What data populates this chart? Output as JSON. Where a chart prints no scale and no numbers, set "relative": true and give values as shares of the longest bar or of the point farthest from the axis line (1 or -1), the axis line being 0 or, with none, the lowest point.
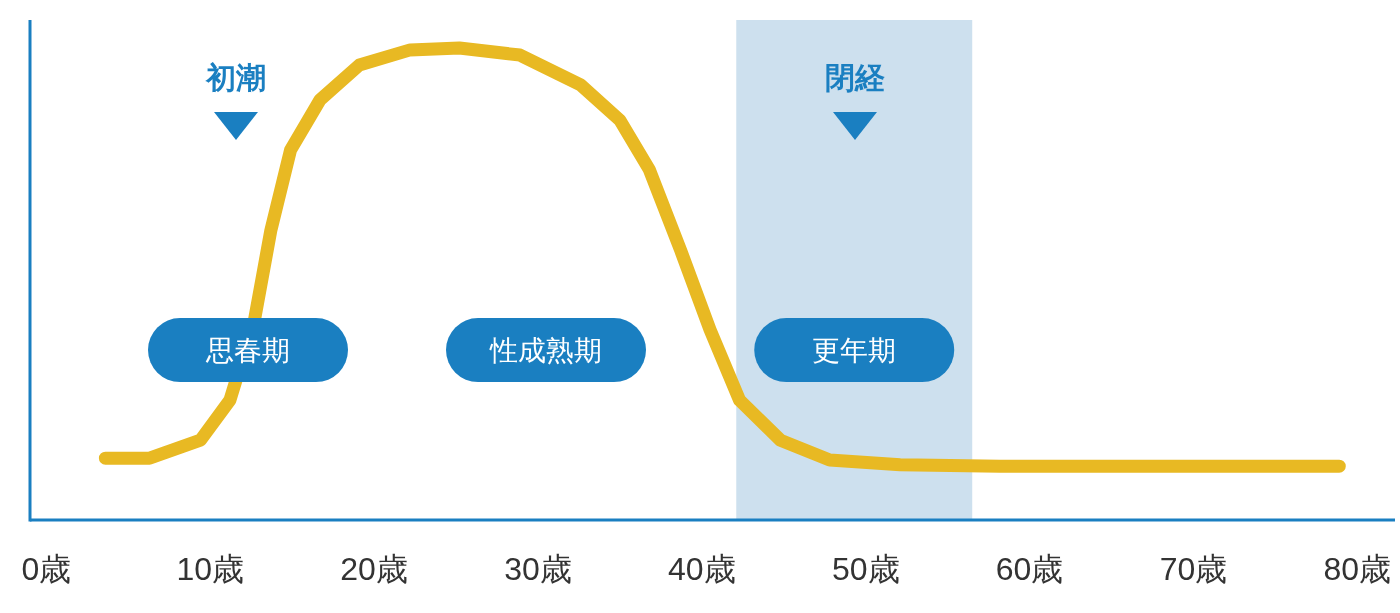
{
  "chart_data": {
    "type": "line",
    "relative": true,
    "x": [
      3.6,
      6.3,
      9.4,
      11.2,
      12.7,
      13.7,
      14.9,
      16.7,
      19.1,
      22.2,
      25.2,
      28.9,
      32.6,
      35.0,
      36.8,
      38.7,
      40.5,
      42.3,
      44.8,
      47.8,
      52.1,
      58.2,
      78.9
    ],
    "series": [
      {
        "color": "#e8b923",
        "values": [
          0.131,
          0.131,
          0.169,
          0.254,
          0.424,
          0.614,
          0.784,
          0.89,
          0.964,
          0.996,
          1,
          0.985,
          0.922,
          0.847,
          0.742,
          0.572,
          0.403,
          0.254,
          0.169,
          0.127,
          0.117,
          0.114,
          0.114
        ]
      }
    ],
    "xlim": [
      -1,
      82.3
    ],
    "xticks": [
      {
        "value": 0,
        "label": "0歳"
      },
      {
        "value": 10,
        "label": "10歳"
      },
      {
        "value": 20,
        "label": "20歳"
      },
      {
        "value": 30,
        "label": "30歳"
      },
      {
        "value": 40,
        "label": "40歳"
      },
      {
        "value": 50,
        "label": "50歳"
      },
      {
        "value": 60,
        "label": "60歳"
      },
      {
        "value": 70,
        "label": "70歳"
      },
      {
        "value": 80,
        "label": "80歳"
      }
    ],
    "bands": [
      {
        "axis": "x",
        "from": 42.1,
        "to": 56.5,
        "label": "更年期",
        "color": "#cde0ee"
      }
    ],
    "annotations": [
      "思春期",
      "性成熟期",
      "初潮",
      "閉経"
    ]
  }
}
